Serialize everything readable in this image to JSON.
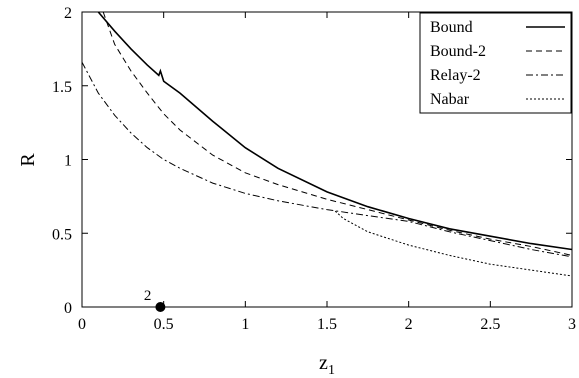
{
  "chart_data": {
    "type": "line",
    "title": "",
    "xlabel": "z",
    "xlabel_sub": "1",
    "ylabel": "R",
    "xlim": [
      0,
      3
    ],
    "ylim": [
      0,
      2
    ],
    "xticks": [
      0,
      0.5,
      1,
      1.5,
      2,
      2.5,
      3
    ],
    "xtick_labels": [
      "0",
      "0.5",
      "1",
      "1.5",
      "2",
      "2.5",
      "3"
    ],
    "yticks": [
      0,
      0.5,
      1,
      1.5,
      2
    ],
    "ytick_labels": [
      "0",
      "0.5",
      "1",
      "1.5",
      "2"
    ],
    "grid": false,
    "legend_position": "top-right",
    "series": [
      {
        "name": "Bound",
        "style": "solid",
        "x": [
          0.1,
          0.2,
          0.3,
          0.4,
          0.47,
          0.48,
          0.5,
          0.6,
          0.8,
          1.0,
          1.2,
          1.5,
          1.75,
          2.0,
          2.25,
          2.5,
          2.75,
          3.0
        ],
        "y": [
          2.0,
          1.87,
          1.75,
          1.64,
          1.57,
          1.6,
          1.53,
          1.45,
          1.26,
          1.08,
          0.94,
          0.78,
          0.68,
          0.6,
          0.53,
          0.48,
          0.43,
          0.39
        ]
      },
      {
        "name": "Bound-2",
        "style": "dashed",
        "x": [
          0.13,
          0.2,
          0.3,
          0.4,
          0.5,
          0.6,
          0.8,
          1.0,
          1.2,
          1.5,
          1.75,
          2.0,
          2.25,
          2.5,
          2.75,
          3.0
        ],
        "y": [
          2.0,
          1.78,
          1.6,
          1.45,
          1.31,
          1.2,
          1.03,
          0.91,
          0.83,
          0.73,
          0.66,
          0.59,
          0.52,
          0.46,
          0.41,
          0.35
        ]
      },
      {
        "name": "Relay-2",
        "style": "dashdot",
        "x": [
          0,
          0.1,
          0.2,
          0.3,
          0.4,
          0.5,
          0.6,
          0.8,
          1.0,
          1.2,
          1.4,
          1.5,
          1.75,
          2.0,
          2.25,
          2.5,
          2.75,
          3.0
        ],
        "y": [
          1.66,
          1.45,
          1.3,
          1.18,
          1.08,
          1.0,
          0.94,
          0.84,
          0.77,
          0.72,
          0.68,
          0.66,
          0.62,
          0.58,
          0.51,
          0.45,
          0.39,
          0.34
        ]
      },
      {
        "name": "Nabar",
        "style": "dotted",
        "x": [
          1.55,
          1.6,
          1.75,
          2.0,
          2.25,
          2.5,
          2.75,
          3.0
        ],
        "y": [
          0.65,
          0.6,
          0.51,
          0.42,
          0.35,
          0.29,
          0.25,
          0.21
        ]
      }
    ],
    "annotations": [
      {
        "text": "2",
        "x": 0.48,
        "y": 0
      }
    ]
  }
}
